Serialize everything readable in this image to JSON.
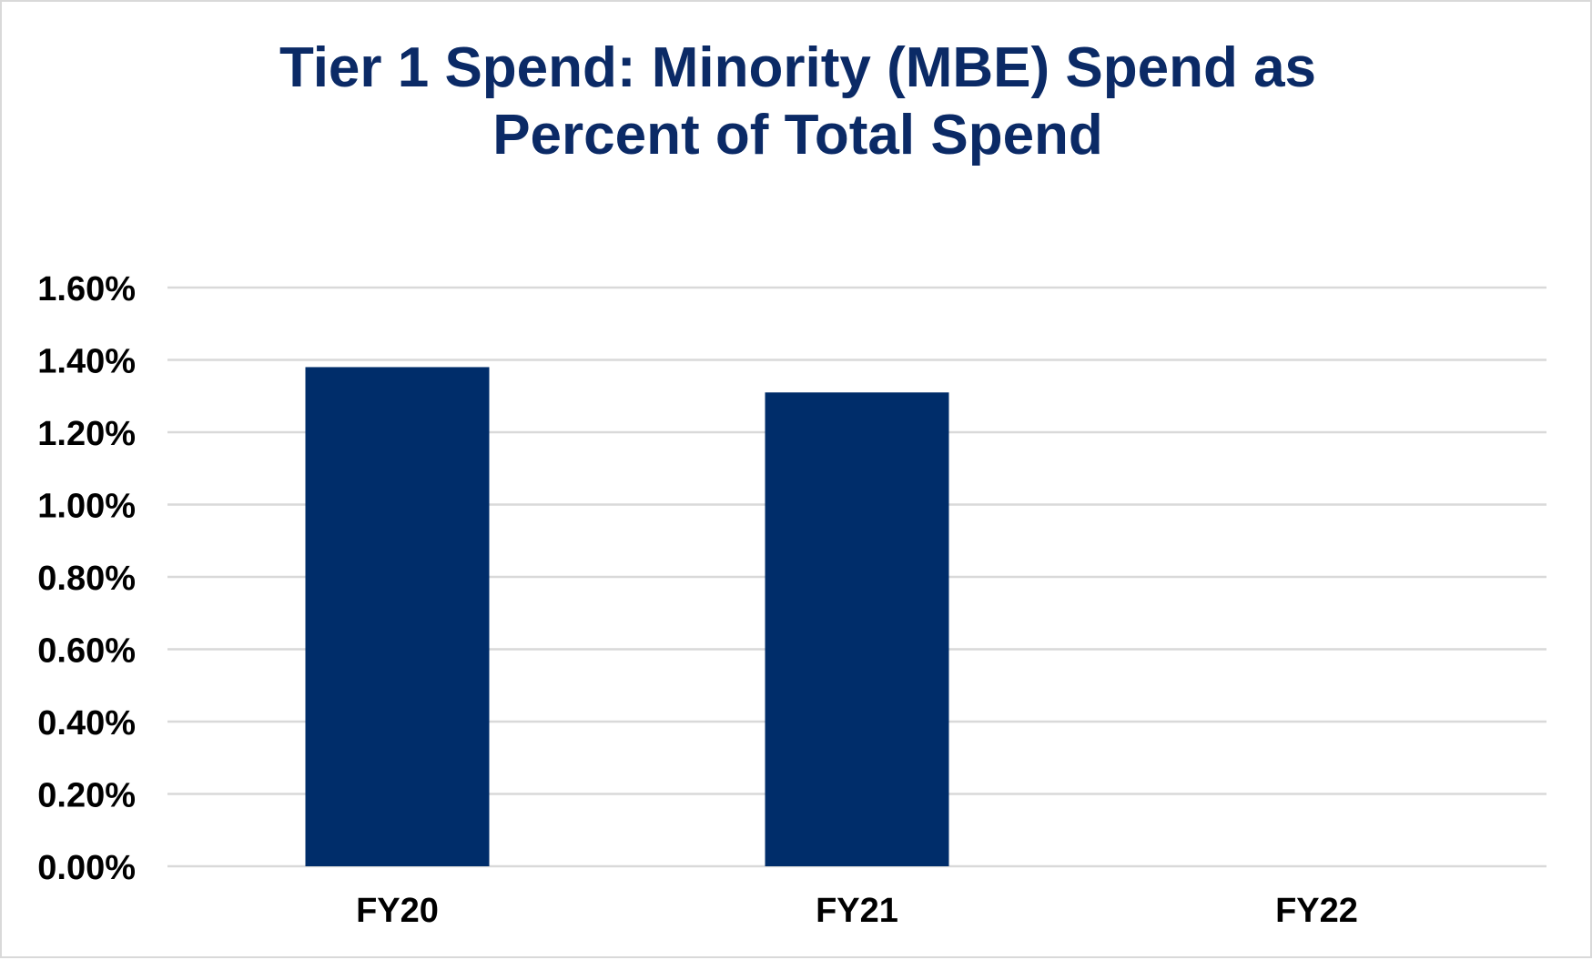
{
  "chart_data": {
    "type": "bar",
    "title": "Tier 1 Spend: Minority (MBE) Spend as\nPercent of Total Spend",
    "categories": [
      "FY20",
      "FY21",
      "FY22"
    ],
    "values": [
      1.38,
      1.31,
      0
    ],
    "ylim": [
      0,
      1.6
    ],
    "y_ticks": [
      "0.00%",
      "0.20%",
      "0.40%",
      "0.60%",
      "0.80%",
      "1.00%",
      "1.20%",
      "1.40%",
      "1.60%"
    ],
    "y_tick_values": [
      0,
      0.2,
      0.4,
      0.6,
      0.8,
      1.0,
      1.2,
      1.4,
      1.6
    ],
    "xlabel": "",
    "ylabel": "",
    "grid": true,
    "legend": "none",
    "colors": {
      "bar": "#002d6a",
      "title": "#0b2a66",
      "grid": "#d9d9d9",
      "border": "#d9d9d9"
    }
  }
}
